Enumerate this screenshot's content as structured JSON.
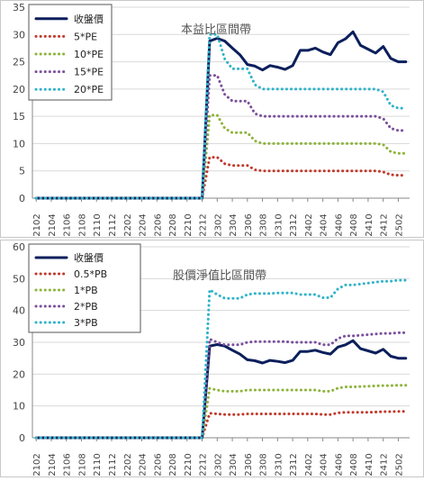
{
  "chart_data": [
    {
      "type": "line",
      "title": "本益比區間帶",
      "ylim": [
        0,
        35
      ],
      "yticks": [
        0,
        5,
        10,
        15,
        20,
        25,
        30,
        35
      ],
      "grid": true,
      "legend_position": "top-left",
      "x": [
        "2102",
        "2103",
        "2104",
        "2105",
        "2106",
        "2107",
        "2108",
        "2109",
        "2110",
        "2111",
        "2112",
        "2201",
        "2202",
        "2203",
        "2204",
        "2205",
        "2206",
        "2207",
        "2208",
        "2209",
        "2210",
        "2211",
        "2212",
        "2301",
        "2302",
        "2303",
        "2304",
        "2305",
        "2306",
        "2307",
        "2308",
        "2309",
        "2310",
        "2311",
        "2312",
        "2401",
        "2402",
        "2403",
        "2404",
        "2405",
        "2406",
        "2407",
        "2408",
        "2409",
        "2410",
        "2411",
        "2412",
        "2501",
        "2502",
        "2503"
      ],
      "xtick_labels": [
        "2102",
        "2104",
        "2106",
        "2108",
        "2110",
        "2112",
        "2202",
        "2204",
        "2206",
        "2208",
        "2210",
        "2212",
        "2302",
        "2304",
        "2306",
        "2308",
        "2310",
        "2312",
        "2402",
        "2404",
        "2406",
        "2408",
        "2410",
        "2412",
        "2502"
      ],
      "series": [
        {
          "name": "收盤價",
          "style": "solid",
          "color": "#0b1f5c",
          "values": [
            0,
            0,
            0,
            0,
            0,
            0,
            0,
            0,
            0,
            0,
            0,
            0,
            0,
            0,
            0,
            0,
            0,
            0,
            0,
            0,
            0,
            0,
            0,
            28.8,
            29.3,
            28.8,
            27.5,
            26.3,
            24.5,
            24.2,
            23.5,
            24.3,
            24.0,
            23.6,
            24.3,
            27.1,
            27.1,
            27.5,
            26.8,
            26.3,
            28.5,
            29.2,
            30.5,
            28.0,
            27.3,
            26.6,
            27.8,
            25.6,
            25.0,
            25.0
          ]
        },
        {
          "name": "5*PE",
          "style": "dotted",
          "color": "#c0392b",
          "values": [
            0,
            0,
            0,
            0,
            0,
            0,
            0,
            0,
            0,
            0,
            0,
            0,
            0,
            0,
            0,
            0,
            0,
            0,
            0,
            0,
            0,
            0,
            0,
            7.5,
            7.5,
            6.3,
            6.0,
            6.0,
            6.0,
            5.2,
            5.0,
            5.0,
            5.0,
            5.0,
            5.0,
            5.0,
            5.0,
            5.0,
            5.0,
            5.0,
            5.0,
            5.0,
            5.0,
            5.0,
            5.0,
            5.0,
            4.8,
            4.3,
            4.2,
            4.2
          ]
        },
        {
          "name": "10*PE",
          "style": "dotted",
          "color": "#8db33a",
          "values": [
            0,
            0,
            0,
            0,
            0,
            0,
            0,
            0,
            0,
            0,
            0,
            0,
            0,
            0,
            0,
            0,
            0,
            0,
            0,
            0,
            0,
            0,
            0,
            15.2,
            15.2,
            12.8,
            12.0,
            12.0,
            12.0,
            10.5,
            10.0,
            10.0,
            10.0,
            10.0,
            10.0,
            10.0,
            10.0,
            10.0,
            10.0,
            10.0,
            10.0,
            10.0,
            10.0,
            10.0,
            10.0,
            10.0,
            9.8,
            8.5,
            8.2,
            8.2
          ]
        },
        {
          "name": "15*PE",
          "style": "dotted",
          "color": "#7a4f9c",
          "values": [
            0,
            0,
            0,
            0,
            0,
            0,
            0,
            0,
            0,
            0,
            0,
            0,
            0,
            0,
            0,
            0,
            0,
            0,
            0,
            0,
            0,
            0,
            0,
            22.5,
            22.5,
            19.0,
            17.8,
            17.8,
            17.8,
            15.5,
            15.0,
            15.0,
            15.0,
            15.0,
            15.0,
            15.0,
            15.0,
            15.0,
            15.0,
            15.0,
            15.0,
            15.0,
            15.0,
            15.0,
            15.0,
            15.0,
            14.6,
            12.8,
            12.4,
            12.4
          ]
        },
        {
          "name": "20*PE",
          "style": "dotted",
          "color": "#2eb3c9",
          "values": [
            0,
            0,
            0,
            0,
            0,
            0,
            0,
            0,
            0,
            0,
            0,
            0,
            0,
            0,
            0,
            0,
            0,
            0,
            0,
            0,
            0,
            0,
            0,
            30.0,
            30.0,
            25.5,
            23.7,
            23.7,
            23.7,
            20.8,
            20.0,
            20.0,
            20.0,
            20.0,
            20.0,
            20.0,
            20.0,
            20.0,
            20.0,
            20.0,
            20.0,
            20.0,
            20.0,
            20.0,
            20.0,
            20.0,
            19.5,
            17.0,
            16.5,
            16.5
          ]
        }
      ]
    },
    {
      "type": "line",
      "title": "股價淨值比區間帶",
      "ylim": [
        0,
        60
      ],
      "yticks": [
        0,
        10,
        20,
        30,
        40,
        50,
        60
      ],
      "grid": true,
      "legend_position": "top-left",
      "x": [
        "2102",
        "2103",
        "2104",
        "2105",
        "2106",
        "2107",
        "2108",
        "2109",
        "2110",
        "2111",
        "2112",
        "2201",
        "2202",
        "2203",
        "2204",
        "2205",
        "2206",
        "2207",
        "2208",
        "2209",
        "2210",
        "2211",
        "2212",
        "2301",
        "2302",
        "2303",
        "2304",
        "2305",
        "2306",
        "2307",
        "2308",
        "2309",
        "2310",
        "2311",
        "2312",
        "2401",
        "2402",
        "2403",
        "2404",
        "2405",
        "2406",
        "2407",
        "2408",
        "2409",
        "2410",
        "2411",
        "2412",
        "2501",
        "2502",
        "2503"
      ],
      "xtick_labels": [
        "2102",
        "2104",
        "2106",
        "2108",
        "2110",
        "2112",
        "2202",
        "2204",
        "2206",
        "2208",
        "2210",
        "2212",
        "2302",
        "2304",
        "2306",
        "2308",
        "2310",
        "2312",
        "2402",
        "2404",
        "2406",
        "2408",
        "2410",
        "2412",
        "2502"
      ],
      "series": [
        {
          "name": "收盤價",
          "style": "solid",
          "color": "#0b1f5c",
          "values": [
            0,
            0,
            0,
            0,
            0,
            0,
            0,
            0,
            0,
            0,
            0,
            0,
            0,
            0,
            0,
            0,
            0,
            0,
            0,
            0,
            0,
            0,
            0,
            28.8,
            29.3,
            28.8,
            27.5,
            26.3,
            24.5,
            24.2,
            23.5,
            24.3,
            24.0,
            23.6,
            24.3,
            27.1,
            27.1,
            27.5,
            26.8,
            26.3,
            28.5,
            29.2,
            30.5,
            28.0,
            27.3,
            26.6,
            27.8,
            25.6,
            25.0,
            25.0
          ]
        },
        {
          "name": "0.5*PB",
          "style": "dotted",
          "color": "#c0392b",
          "values": [
            0,
            0,
            0,
            0,
            0,
            0,
            0,
            0,
            0,
            0,
            0,
            0,
            0,
            0,
            0,
            0,
            0,
            0,
            0,
            0,
            0,
            0,
            0,
            7.7,
            7.5,
            7.3,
            7.3,
            7.3,
            7.5,
            7.5,
            7.5,
            7.5,
            7.5,
            7.5,
            7.5,
            7.5,
            7.5,
            7.5,
            7.3,
            7.3,
            7.8,
            8.0,
            8.0,
            8.0,
            8.0,
            8.1,
            8.2,
            8.2,
            8.3,
            8.3
          ]
        },
        {
          "name": "1*PB",
          "style": "dotted",
          "color": "#8db33a",
          "values": [
            0,
            0,
            0,
            0,
            0,
            0,
            0,
            0,
            0,
            0,
            0,
            0,
            0,
            0,
            0,
            0,
            0,
            0,
            0,
            0,
            0,
            0,
            0,
            15.5,
            15.0,
            14.6,
            14.6,
            14.6,
            15.0,
            15.0,
            15.0,
            15.0,
            15.0,
            15.0,
            15.0,
            15.0,
            15.0,
            15.0,
            14.6,
            14.6,
            15.6,
            16.0,
            16.0,
            16.1,
            16.2,
            16.3,
            16.4,
            16.4,
            16.5,
            16.5
          ]
        },
        {
          "name": "2*PB",
          "style": "dotted",
          "color": "#7a4f9c",
          "values": [
            0,
            0,
            0,
            0,
            0,
            0,
            0,
            0,
            0,
            0,
            0,
            0,
            0,
            0,
            0,
            0,
            0,
            0,
            0,
            0,
            0,
            0,
            0,
            31.0,
            30.0,
            29.2,
            29.2,
            29.2,
            30.0,
            30.2,
            30.2,
            30.2,
            30.2,
            30.2,
            30.0,
            30.0,
            30.0,
            30.0,
            29.2,
            29.2,
            31.2,
            32.0,
            32.0,
            32.2,
            32.4,
            32.6,
            32.8,
            32.8,
            33.0,
            33.0
          ]
        },
        {
          "name": "3*PB",
          "style": "dotted",
          "color": "#2eb3c9",
          "values": [
            0,
            0,
            0,
            0,
            0,
            0,
            0,
            0,
            0,
            0,
            0,
            0,
            0,
            0,
            0,
            0,
            0,
            0,
            0,
            0,
            0,
            0,
            0,
            46.5,
            45.0,
            43.8,
            43.8,
            43.8,
            45.0,
            45.3,
            45.3,
            45.3,
            45.5,
            45.5,
            45.5,
            45.0,
            45.0,
            45.0,
            44.0,
            44.0,
            46.8,
            48.0,
            48.0,
            48.3,
            48.6,
            48.9,
            49.2,
            49.2,
            49.5,
            49.5
          ]
        }
      ]
    }
  ]
}
